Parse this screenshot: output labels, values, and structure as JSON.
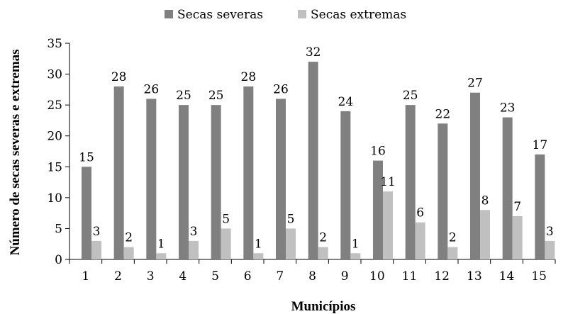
{
  "chart_data": {
    "type": "bar",
    "xlabel": "Municípios",
    "ylabel": "Número de secas severas e extremas",
    "ylim": [
      0,
      35
    ],
    "yticks": [
      0,
      5,
      10,
      15,
      20,
      25,
      30,
      35
    ],
    "grid": false,
    "legend_position": "top",
    "categories": [
      "1",
      "2",
      "3",
      "4",
      "5",
      "6",
      "7",
      "8",
      "9",
      "10",
      "11",
      "12",
      "13",
      "14",
      "15"
    ],
    "series": [
      {
        "name": "Secas severas",
        "color": "#808080",
        "values": [
          15,
          28,
          26,
          25,
          25,
          28,
          26,
          32,
          24,
          16,
          25,
          22,
          27,
          23,
          17
        ]
      },
      {
        "name": "Secas extremas",
        "color": "#c0c0c0",
        "values": [
          3,
          2,
          1,
          3,
          5,
          1,
          5,
          2,
          1,
          11,
          6,
          2,
          8,
          7,
          3
        ]
      }
    ],
    "data_labels": true
  }
}
